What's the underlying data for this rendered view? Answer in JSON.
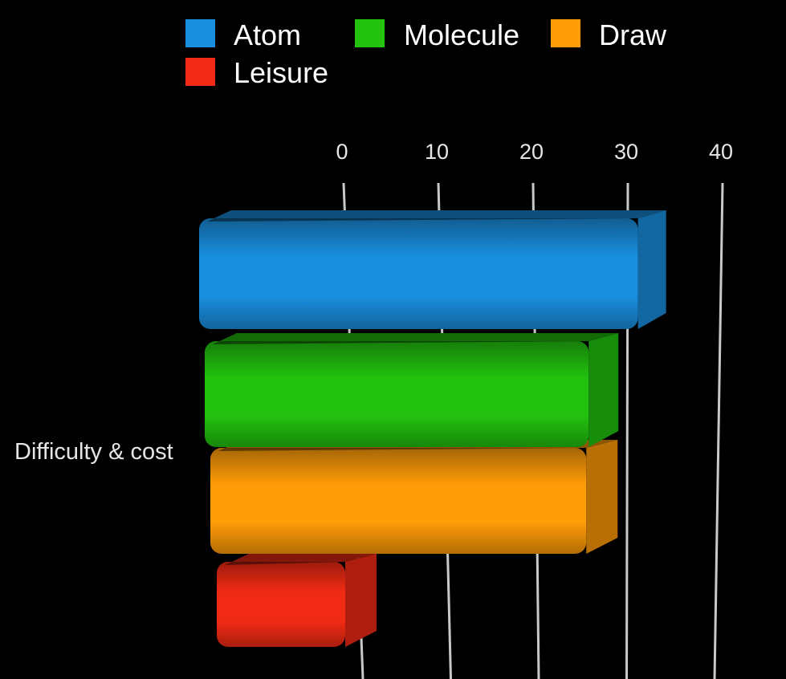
{
  "chart_data": {
    "type": "bar",
    "orientation": "horizontal",
    "style": "3d",
    "categories": [
      "Difficulty & cost"
    ],
    "series": [
      {
        "name": "Atom",
        "values": [
          34
        ],
        "color": "#1a8fe0"
      },
      {
        "name": "Molecule",
        "values": [
          29
        ],
        "color": "#22c20f"
      },
      {
        "name": "Draw",
        "values": [
          29
        ],
        "color": "#ff9c08"
      },
      {
        "name": "Leisure",
        "values": [
          2
        ],
        "color": "#f02a14"
      }
    ],
    "x_ticks": [
      "0",
      "10",
      "20",
      "30",
      "40"
    ],
    "xlim": [
      0,
      40
    ],
    "grid": true,
    "legend_position": "top",
    "background": "#000000"
  }
}
